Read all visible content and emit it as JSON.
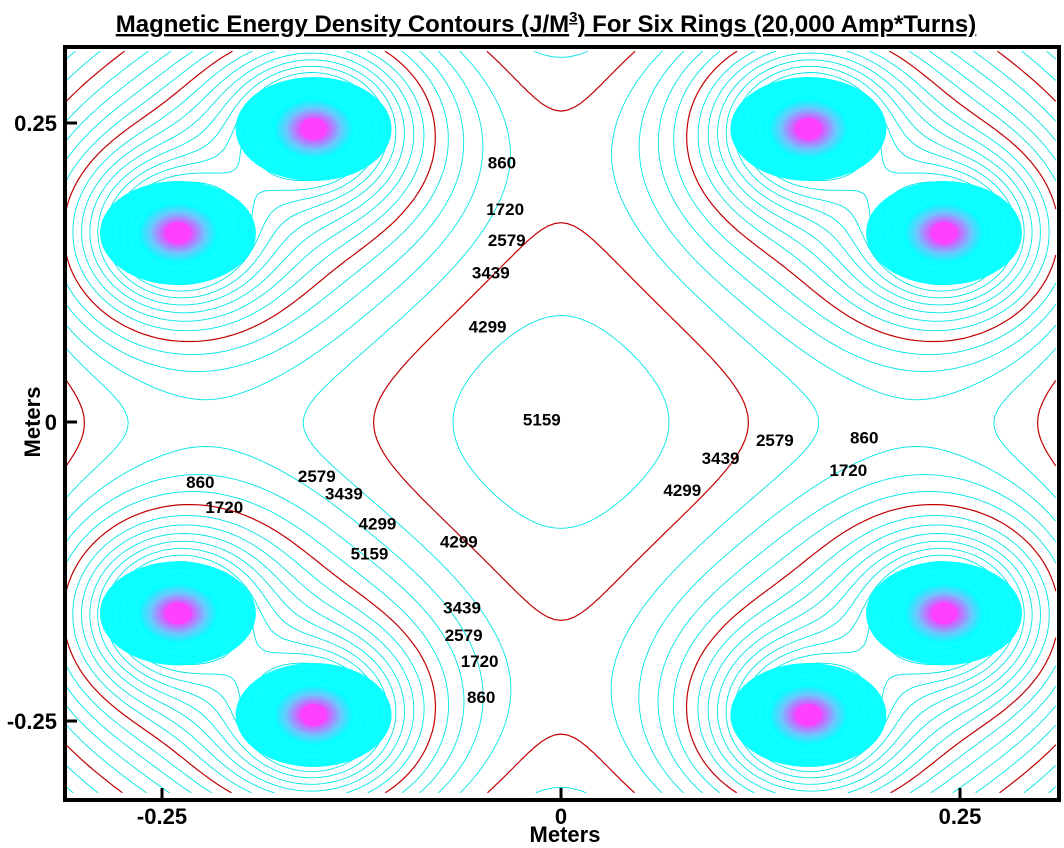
{
  "colors": {
    "low_contour": "#00e5e5",
    "key_contour": "#c00000",
    "hot_core": "#ff40ff",
    "dense_field": "#00ffff",
    "frame": "#000000"
  },
  "chart_data": {
    "type": "contour",
    "title": {
      "prefix": "Magnetic Energy Density Contours (J/M",
      "superscript": "3",
      "suffix": ") For Six Rings (20,000 Amp*Turns)"
    },
    "xlabel": "Meters",
    "ylabel": "Meters",
    "xlim": [
      -0.31,
      0.31
    ],
    "ylim": [
      -0.31,
      0.31
    ],
    "x_ticks": [
      {
        "value": -0.25,
        "label": "-0.25"
      },
      {
        "value": 0,
        "label": "0"
      },
      {
        "value": 0.25,
        "label": "0.25"
      }
    ],
    "y_ticks": [
      {
        "value": 0.25,
        "label": "0.25"
      },
      {
        "value": 0,
        "label": "0"
      },
      {
        "value": -0.25,
        "label": "-0.25"
      }
    ],
    "grid": false,
    "ring_centers": [
      {
        "x": -0.155,
        "y": 0.245
      },
      {
        "x": -0.24,
        "y": 0.158
      },
      {
        "x": -0.24,
        "y": -0.16
      },
      {
        "x": -0.155,
        "y": -0.245
      },
      {
        "x": 0.155,
        "y": 0.245
      },
      {
        "x": 0.24,
        "y": 0.158
      },
      {
        "x": 0.24,
        "y": -0.16
      },
      {
        "x": 0.155,
        "y": -0.245
      }
    ],
    "contour_levels": [
      860,
      1720,
      2579,
      3439,
      4299,
      5159
    ],
    "key_levels": [
      860,
      4299
    ],
    "contour_labels": [
      {
        "text": "860",
        "x": -0.037,
        "y": 0.212
      },
      {
        "text": "1720",
        "x": -0.035,
        "y": 0.173
      },
      {
        "text": "2579",
        "x": -0.034,
        "y": 0.147
      },
      {
        "text": "3439",
        "x": -0.044,
        "y": 0.12
      },
      {
        "text": "4299",
        "x": -0.046,
        "y": 0.075
      },
      {
        "text": "5159",
        "x": -0.012,
        "y": -0.003
      },
      {
        "text": "860",
        "x": 0.19,
        "y": -0.018
      },
      {
        "text": "1720",
        "x": 0.18,
        "y": -0.045
      },
      {
        "text": "2579",
        "x": 0.134,
        "y": -0.02
      },
      {
        "text": "3439",
        "x": 0.1,
        "y": -0.035
      },
      {
        "text": "4299",
        "x": 0.076,
        "y": -0.062
      },
      {
        "text": "860",
        "x": -0.226,
        "y": -0.055
      },
      {
        "text": "1720",
        "x": -0.211,
        "y": -0.076
      },
      {
        "text": "2579",
        "x": -0.153,
        "y": -0.05
      },
      {
        "text": "3439",
        "x": -0.136,
        "y": -0.065
      },
      {
        "text": "4299",
        "x": -0.115,
        "y": -0.09
      },
      {
        "text": "5159",
        "x": -0.12,
        "y": -0.115
      },
      {
        "text": "4299",
        "x": -0.064,
        "y": -0.105
      },
      {
        "text": "3439",
        "x": -0.062,
        "y": -0.16
      },
      {
        "text": "2579",
        "x": -0.061,
        "y": -0.183
      },
      {
        "text": "1720",
        "x": -0.051,
        "y": -0.205
      },
      {
        "text": "860",
        "x": -0.05,
        "y": -0.235
      }
    ]
  }
}
